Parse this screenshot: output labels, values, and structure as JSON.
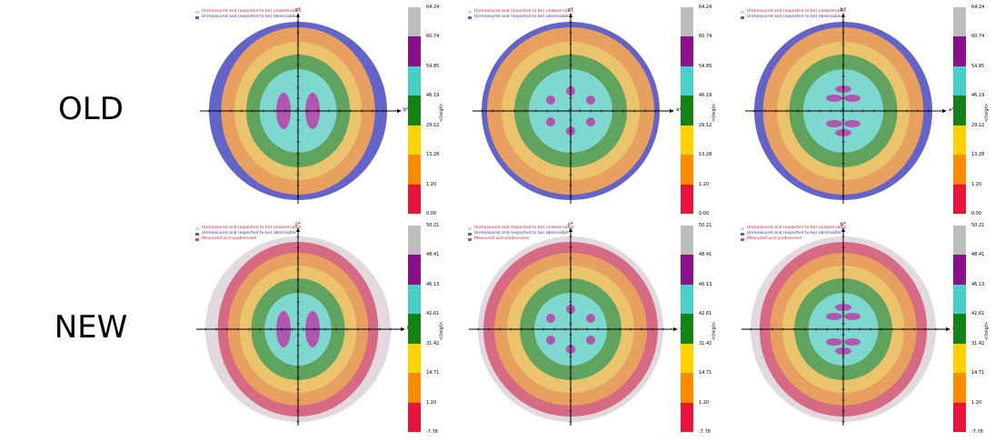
{
  "rows": [
    {
      "label": "OLD"
    },
    {
      "label": "NEW"
    }
  ],
  "legend_old": [
    {
      "text": "Unmeasured and (expected to be) unobservable",
      "color": "#ddd4da",
      "text_color": "#cc1e3c"
    },
    {
      "text": "Unmeasured and (expected to be) observable",
      "color": "#5a5acd",
      "text_color": "#3232b4"
    }
  ],
  "legend_new": [
    {
      "text": "Unmeasured and (expected to be) unobservable",
      "color": "#ddd4da",
      "text_color": "#cc1e3c"
    },
    {
      "text": "Unmeasured and (expected to be) observable",
      "color": "#5a5acd",
      "text_color": "#3232b4"
    },
    {
      "text": "Measured and unobserved",
      "color": "#d44a6a",
      "text_color": "#cc1e3c"
    }
  ],
  "colorbar_colors": [
    "#bdbdbd",
    "#8b108b",
    "#48d1c8",
    "#148214",
    "#ffd200",
    "#ff8c00",
    "#e8143c"
  ],
  "colorbar_unit": "<I/sigI>",
  "colorbar_old": [
    "64.24",
    "60.74",
    "54.85",
    "46.19",
    "29.12",
    "13.28",
    "1.20",
    "0.00"
  ],
  "colorbar_new": [
    "50.21",
    "48.41",
    "46.13",
    "42.61",
    "31.42",
    "14.71",
    "1.20",
    "-7.78"
  ],
  "axes": {
    "c": "c*",
    "b": "b*",
    "a": "a*"
  },
  "panels": [
    {
      "row": 0,
      "col": 0,
      "vertical": "c*",
      "horizontal": "b*"
    },
    {
      "row": 0,
      "col": 1,
      "vertical": "c*",
      "horizontal": "a*"
    },
    {
      "row": 0,
      "col": 2,
      "vertical": "b*",
      "horizontal": "a*"
    },
    {
      "row": 1,
      "col": 0,
      "vertical": "c*",
      "horizontal": "b*"
    },
    {
      "row": 1,
      "col": 1,
      "vertical": "c*",
      "horizontal": "a*"
    },
    {
      "row": 1,
      "col": 2,
      "vertical": "b*",
      "horizontal": "a*"
    }
  ]
}
